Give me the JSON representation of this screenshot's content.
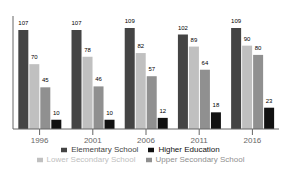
{
  "chart_data": {
    "type": "bar",
    "categories": [
      "1996",
      "2001",
      "2006",
      "2011",
      "2016"
    ],
    "series": [
      {
        "name": "Elementary School",
        "color": "#444444",
        "values": [
          107,
          107,
          109,
          102,
          109
        ]
      },
      {
        "name": "Lower Secondary School",
        "color": "#c0c0c0",
        "values": [
          70,
          78,
          82,
          89,
          90
        ]
      },
      {
        "name": "Upper Secondary School",
        "color": "#909090",
        "values": [
          45,
          46,
          57,
          64,
          80
        ]
      },
      {
        "name": "Higher Education",
        "color": "#111111",
        "values": [
          10,
          10,
          12,
          18,
          23
        ]
      }
    ],
    "ylim": [
      0,
      122
    ],
    "data_labels": true,
    "tick_labels": "x",
    "grid": false,
    "legend": "bottom"
  }
}
